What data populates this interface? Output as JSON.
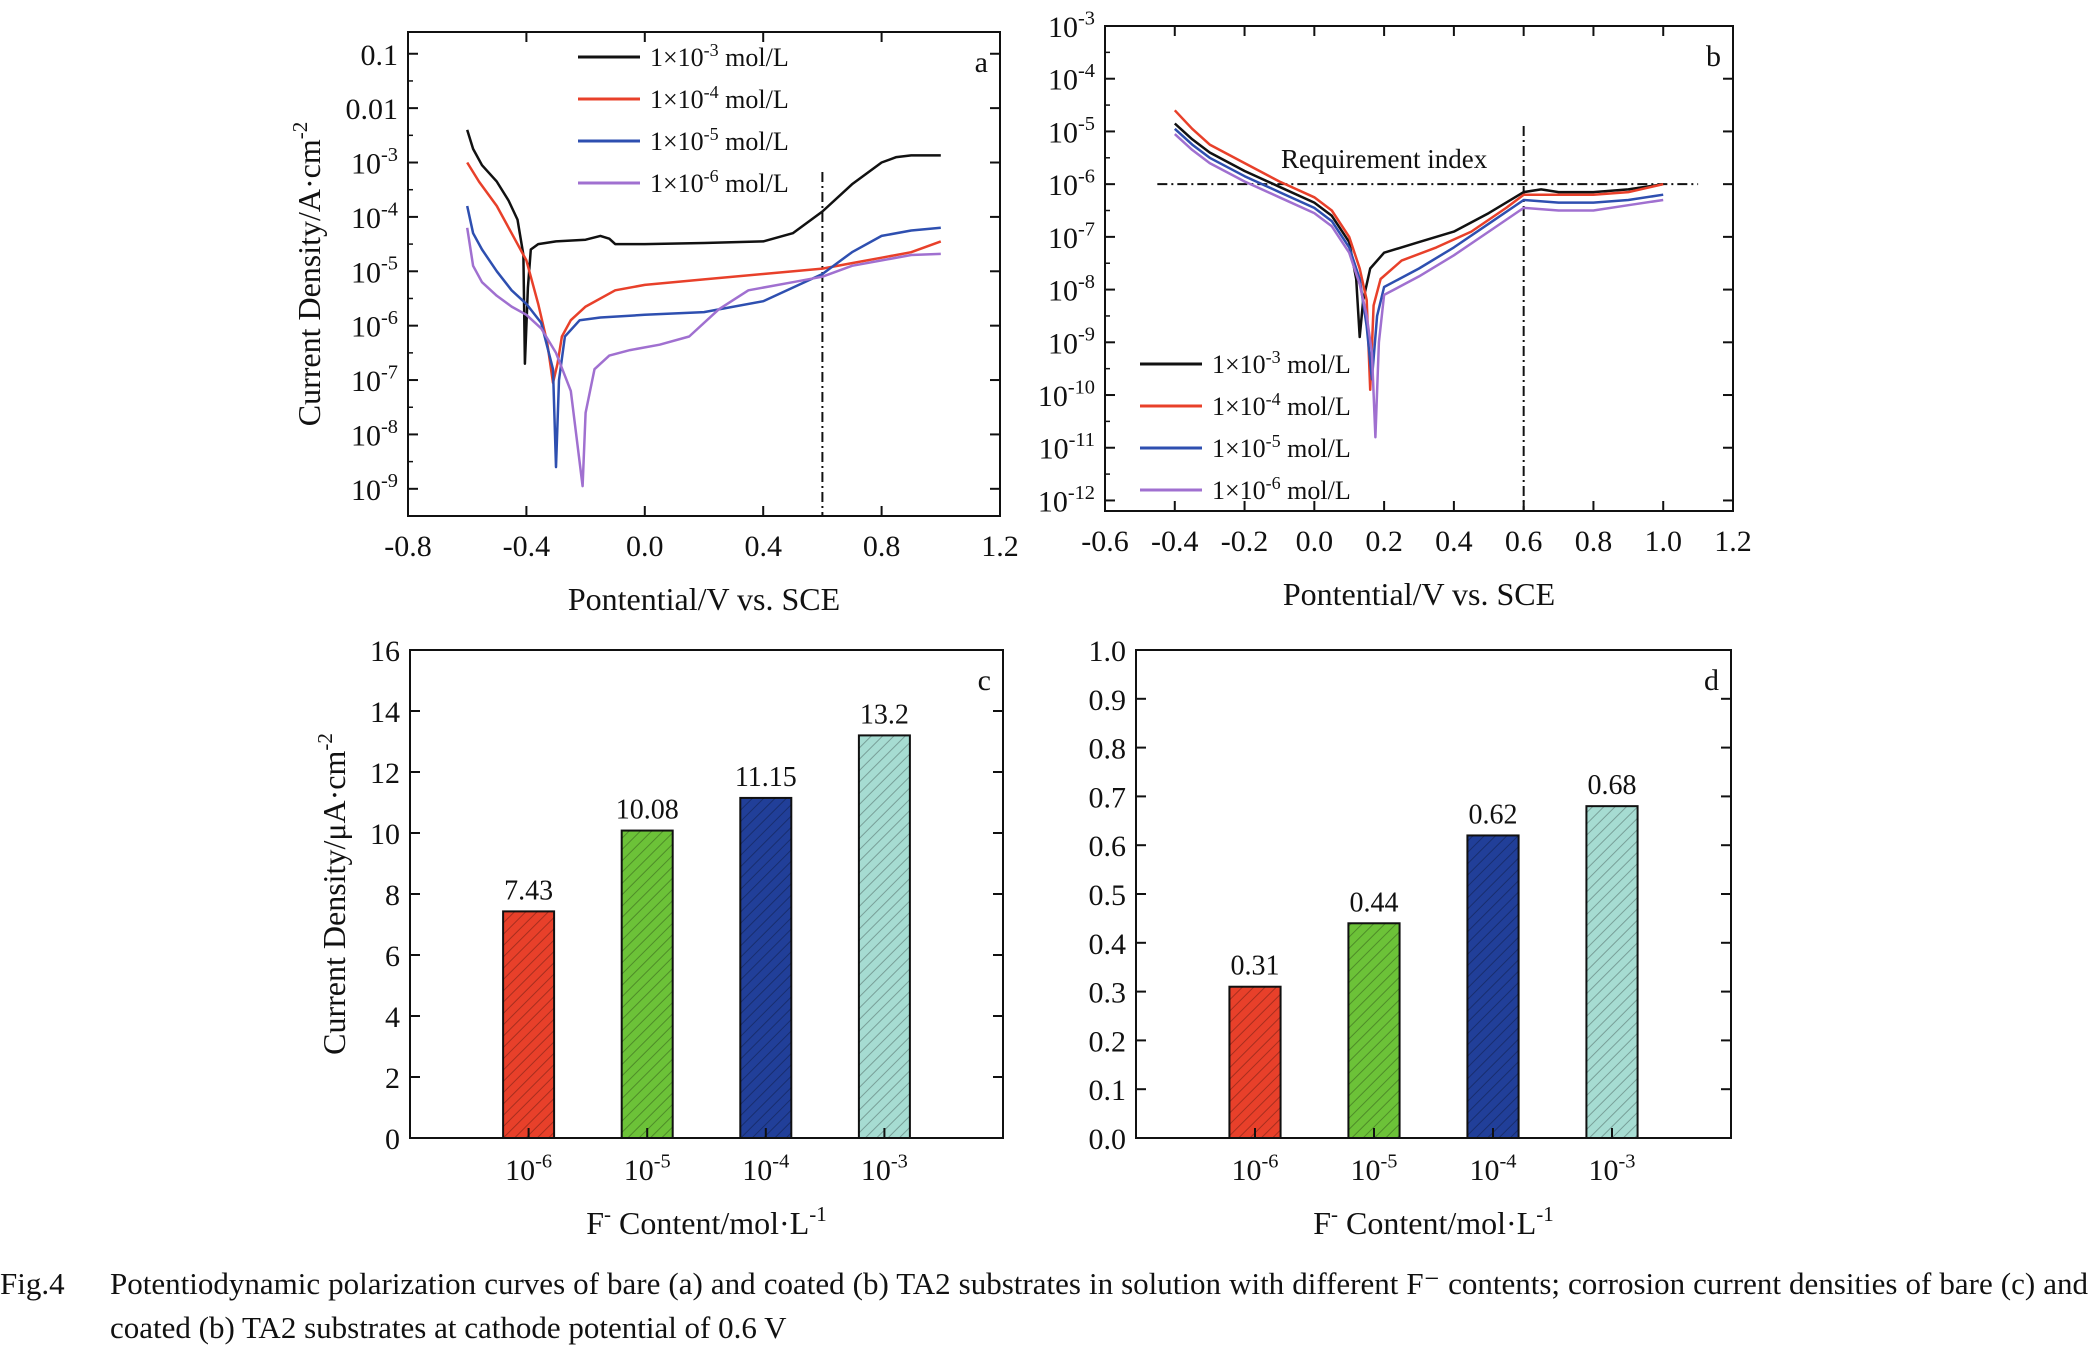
{
  "charts": [
    {
      "id": "a",
      "panel_label": "a",
      "type": "line",
      "yscale": "log",
      "xlabel": "Pontential/V vs. SCE",
      "ylabel": "Current Density/A·cm",
      "ylabel_sup": "-2",
      "xlim": [
        -0.8,
        1.2
      ],
      "xticks": [
        "-0.8",
        "-0.4",
        "0.0",
        "0.4",
        "0.8",
        "1.2"
      ],
      "ylim_exp": [
        -9.5,
        -0.6
      ],
      "yticks": [
        {
          "exp": -1,
          "base": "0.1",
          "sup": ""
        },
        {
          "exp": -2,
          "base": "0.01",
          "sup": ""
        },
        {
          "exp": -3,
          "base": "10",
          "sup": "-3"
        },
        {
          "exp": -4,
          "base": "10",
          "sup": "-4"
        },
        {
          "exp": -5,
          "base": "10",
          "sup": "-5"
        },
        {
          "exp": -6,
          "base": "10",
          "sup": "-6"
        },
        {
          "exp": -7,
          "base": "10",
          "sup": "-7"
        },
        {
          "exp": -8,
          "base": "10",
          "sup": "-8"
        },
        {
          "exp": -9,
          "base": "10",
          "sup": "-9"
        }
      ],
      "vline": 0.6,
      "legend_position": "top-center",
      "series": [
        {
          "name": "1×10",
          "name_sup": "-3",
          "name_unit": " mol/L",
          "color": "#111111",
          "points": [
            [
              -0.6,
              -2.4
            ],
            [
              -0.58,
              -2.75
            ],
            [
              -0.55,
              -3.05
            ],
            [
              -0.5,
              -3.35
            ],
            [
              -0.46,
              -3.7
            ],
            [
              -0.43,
              -4.05
            ],
            [
              -0.41,
              -4.7
            ],
            [
              -0.405,
              -6.7
            ],
            [
              -0.395,
              -5.3
            ],
            [
              -0.385,
              -4.6
            ],
            [
              -0.36,
              -4.5
            ],
            [
              -0.3,
              -4.45
            ],
            [
              -0.2,
              -4.42
            ],
            [
              -0.15,
              -4.35
            ],
            [
              -0.12,
              -4.4
            ],
            [
              -0.1,
              -4.5
            ],
            [
              0.0,
              -4.5
            ],
            [
              0.2,
              -4.48
            ],
            [
              0.4,
              -4.45
            ],
            [
              0.5,
              -4.3
            ],
            [
              0.6,
              -3.9
            ],
            [
              0.7,
              -3.4
            ],
            [
              0.8,
              -3.0
            ],
            [
              0.85,
              -2.9
            ],
            [
              0.9,
              -2.87
            ],
            [
              1.0,
              -2.87
            ]
          ]
        },
        {
          "name": "1×10",
          "name_sup": "-4",
          "name_unit": " mol/L",
          "color": "#e8402a",
          "points": [
            [
              -0.6,
              -3.0
            ],
            [
              -0.56,
              -3.35
            ],
            [
              -0.5,
              -3.8
            ],
            [
              -0.45,
              -4.3
            ],
            [
              -0.4,
              -4.8
            ],
            [
              -0.36,
              -5.6
            ],
            [
              -0.33,
              -6.3
            ],
            [
              -0.31,
              -7.05
            ],
            [
              -0.295,
              -6.7
            ],
            [
              -0.28,
              -6.2
            ],
            [
              -0.25,
              -5.9
            ],
            [
              -0.2,
              -5.65
            ],
            [
              -0.1,
              -5.35
            ],
            [
              0.0,
              -5.25
            ],
            [
              0.2,
              -5.15
            ],
            [
              0.4,
              -5.05
            ],
            [
              0.6,
              -4.95
            ],
            [
              0.7,
              -4.85
            ],
            [
              0.8,
              -4.75
            ],
            [
              0.9,
              -4.65
            ],
            [
              1.0,
              -4.45
            ]
          ]
        },
        {
          "name": "1×10",
          "name_sup": "-5",
          "name_unit": " mol/L",
          "color": "#2e4fb0",
          "points": [
            [
              -0.6,
              -3.8
            ],
            [
              -0.58,
              -4.3
            ],
            [
              -0.55,
              -4.6
            ],
            [
              -0.5,
              -5.0
            ],
            [
              -0.45,
              -5.35
            ],
            [
              -0.4,
              -5.6
            ],
            [
              -0.35,
              -5.95
            ],
            [
              -0.31,
              -6.8
            ],
            [
              -0.3,
              -8.6
            ],
            [
              -0.29,
              -7.0
            ],
            [
              -0.27,
              -6.2
            ],
            [
              -0.22,
              -5.9
            ],
            [
              -0.15,
              -5.85
            ],
            [
              0.0,
              -5.8
            ],
            [
              0.2,
              -5.75
            ],
            [
              0.4,
              -5.55
            ],
            [
              0.6,
              -5.05
            ],
            [
              0.7,
              -4.65
            ],
            [
              0.8,
              -4.35
            ],
            [
              0.9,
              -4.25
            ],
            [
              1.0,
              -4.2
            ]
          ]
        },
        {
          "name": "1×10",
          "name_sup": "-6",
          "name_unit": " mol/L",
          "color": "#a070d0",
          "points": [
            [
              -0.6,
              -4.2
            ],
            [
              -0.58,
              -4.9
            ],
            [
              -0.55,
              -5.2
            ],
            [
              -0.5,
              -5.45
            ],
            [
              -0.45,
              -5.65
            ],
            [
              -0.4,
              -5.8
            ],
            [
              -0.35,
              -6.05
            ],
            [
              -0.3,
              -6.5
            ],
            [
              -0.25,
              -7.2
            ],
            [
              -0.21,
              -8.95
            ],
            [
              -0.2,
              -7.6
            ],
            [
              -0.17,
              -6.8
            ],
            [
              -0.12,
              -6.55
            ],
            [
              -0.05,
              -6.45
            ],
            [
              0.05,
              -6.35
            ],
            [
              0.15,
              -6.2
            ],
            [
              0.25,
              -5.7
            ],
            [
              0.35,
              -5.35
            ],
            [
              0.5,
              -5.2
            ],
            [
              0.6,
              -5.1
            ],
            [
              0.7,
              -4.9
            ],
            [
              0.8,
              -4.8
            ],
            [
              0.9,
              -4.7
            ],
            [
              1.0,
              -4.68
            ]
          ]
        }
      ]
    },
    {
      "id": "b",
      "panel_label": "b",
      "type": "line",
      "yscale": "log",
      "xlabel": "Pontential/V vs. SCE",
      "ylabel": "",
      "xlim": [
        -0.6,
        1.2
      ],
      "xticks": [
        "-0.6",
        "-0.4",
        "-0.2",
        "0.0",
        "0.2",
        "0.4",
        "0.6",
        "0.8",
        "1.0",
        "1.2"
      ],
      "ylim_exp": [
        -12.2,
        -3
      ],
      "yticks": [
        {
          "exp": -3,
          "base": "10",
          "sup": "-3"
        },
        {
          "exp": -4,
          "base": "10",
          "sup": "-4"
        },
        {
          "exp": -5,
          "base": "10",
          "sup": "-5"
        },
        {
          "exp": -6,
          "base": "10",
          "sup": "-6"
        },
        {
          "exp": -7,
          "base": "10",
          "sup": "-7"
        },
        {
          "exp": -8,
          "base": "10",
          "sup": "-8"
        },
        {
          "exp": -9,
          "base": "10",
          "sup": "-9"
        },
        {
          "exp": -10,
          "base": "10",
          "sup": "-10"
        },
        {
          "exp": -11,
          "base": "10",
          "sup": "-11"
        },
        {
          "exp": -12,
          "base": "10",
          "sup": "-12"
        }
      ],
      "vline": 0.6,
      "hline_exp": -6,
      "annotation": "Requirement index",
      "legend_position": "bottom-left",
      "series": [
        {
          "name": "1×10",
          "name_sup": "-3",
          "name_unit": " mol/L",
          "color": "#111111",
          "points": [
            [
              -0.4,
              -4.85
            ],
            [
              -0.35,
              -5.15
            ],
            [
              -0.3,
              -5.4
            ],
            [
              -0.2,
              -5.75
            ],
            [
              -0.1,
              -6.05
            ],
            [
              0.0,
              -6.35
            ],
            [
              0.05,
              -6.6
            ],
            [
              0.1,
              -7.1
            ],
            [
              0.12,
              -7.8
            ],
            [
              0.13,
              -8.9
            ],
            [
              0.14,
              -8.2
            ],
            [
              0.16,
              -7.6
            ],
            [
              0.2,
              -7.3
            ],
            [
              0.3,
              -7.1
            ],
            [
              0.4,
              -6.9
            ],
            [
              0.5,
              -6.55
            ],
            [
              0.6,
              -6.15
            ],
            [
              0.65,
              -6.1
            ],
            [
              0.7,
              -6.15
            ],
            [
              0.8,
              -6.15
            ],
            [
              0.9,
              -6.1
            ],
            [
              1.0,
              -6.0
            ]
          ]
        },
        {
          "name": "1×10",
          "name_sup": "-4",
          "name_unit": " mol/L",
          "color": "#e8402a",
          "points": [
            [
              -0.4,
              -4.6
            ],
            [
              -0.35,
              -4.95
            ],
            [
              -0.3,
              -5.25
            ],
            [
              -0.2,
              -5.6
            ],
            [
              -0.1,
              -5.95
            ],
            [
              0.0,
              -6.25
            ],
            [
              0.05,
              -6.5
            ],
            [
              0.1,
              -7.0
            ],
            [
              0.13,
              -7.6
            ],
            [
              0.15,
              -8.2
            ],
            [
              0.16,
              -9.9
            ],
            [
              0.17,
              -8.3
            ],
            [
              0.19,
              -7.8
            ],
            [
              0.25,
              -7.45
            ],
            [
              0.35,
              -7.2
            ],
            [
              0.45,
              -6.9
            ],
            [
              0.55,
              -6.45
            ],
            [
              0.6,
              -6.2
            ],
            [
              0.7,
              -6.2
            ],
            [
              0.8,
              -6.2
            ],
            [
              0.9,
              -6.15
            ],
            [
              1.0,
              -6.0
            ]
          ]
        },
        {
          "name": "1×10",
          "name_sup": "-5",
          "name_unit": " mol/L",
          "color": "#2e4fb0",
          "points": [
            [
              -0.4,
              -4.95
            ],
            [
              -0.35,
              -5.25
            ],
            [
              -0.3,
              -5.5
            ],
            [
              -0.2,
              -5.85
            ],
            [
              -0.1,
              -6.15
            ],
            [
              0.0,
              -6.45
            ],
            [
              0.05,
              -6.7
            ],
            [
              0.1,
              -7.2
            ],
            [
              0.13,
              -7.8
            ],
            [
              0.15,
              -8.7
            ],
            [
              0.165,
              -9.7
            ],
            [
              0.18,
              -8.5
            ],
            [
              0.2,
              -7.95
            ],
            [
              0.3,
              -7.6
            ],
            [
              0.4,
              -7.2
            ],
            [
              0.5,
              -6.75
            ],
            [
              0.6,
              -6.3
            ],
            [
              0.7,
              -6.35
            ],
            [
              0.8,
              -6.35
            ],
            [
              0.9,
              -6.3
            ],
            [
              1.0,
              -6.2
            ]
          ]
        },
        {
          "name": "1×10",
          "name_sup": "-6",
          "name_unit": " mol/L",
          "color": "#a070d0",
          "points": [
            [
              -0.4,
              -5.05
            ],
            [
              -0.35,
              -5.35
            ],
            [
              -0.3,
              -5.6
            ],
            [
              -0.2,
              -5.95
            ],
            [
              -0.1,
              -6.25
            ],
            [
              0.0,
              -6.55
            ],
            [
              0.05,
              -6.8
            ],
            [
              0.1,
              -7.3
            ],
            [
              0.13,
              -7.9
            ],
            [
              0.15,
              -8.5
            ],
            [
              0.165,
              -9.2
            ],
            [
              0.175,
              -10.8
            ],
            [
              0.185,
              -9.0
            ],
            [
              0.2,
              -8.1
            ],
            [
              0.3,
              -7.75
            ],
            [
              0.4,
              -7.35
            ],
            [
              0.5,
              -6.9
            ],
            [
              0.6,
              -6.45
            ],
            [
              0.7,
              -6.5
            ],
            [
              0.8,
              -6.5
            ],
            [
              0.9,
              -6.4
            ],
            [
              1.0,
              -6.3
            ]
          ]
        }
      ]
    },
    {
      "id": "c",
      "panel_label": "c",
      "type": "bar",
      "xlabel": "F",
      "xlabel_sup": "-",
      "xlabel_rest": " Content/mol·L",
      "xlabel_sup2": "-1",
      "ylabel": "Current Density/μA·cm",
      "ylabel_sup": "-2",
      "ylim": [
        0,
        16
      ],
      "yticks": [
        0,
        2,
        4,
        6,
        8,
        10,
        12,
        14,
        16
      ],
      "categories": [
        {
          "base": "10",
          "sup": "-6"
        },
        {
          "base": "10",
          "sup": "-5"
        },
        {
          "base": "10",
          "sup": "-4"
        },
        {
          "base": "10",
          "sup": "-3"
        }
      ],
      "values": [
        7.43,
        10.08,
        11.15,
        13.2
      ],
      "value_labels": [
        "7.43",
        "10.08",
        "11.15",
        "13.2"
      ],
      "colors": [
        "#e8402a",
        "#6cc238",
        "#213f99",
        "#a6dcd2"
      ]
    },
    {
      "id": "d",
      "panel_label": "d",
      "type": "bar",
      "xlabel": "F",
      "xlabel_sup": "-",
      "xlabel_rest": " Content/mol·L",
      "xlabel_sup2": "-1",
      "ylabel": "",
      "ylim": [
        0,
        1.0
      ],
      "yticks": [
        0.0,
        0.1,
        0.2,
        0.3,
        0.4,
        0.5,
        0.6,
        0.7,
        0.8,
        0.9,
        1.0
      ],
      "ytick_labels": [
        "0.0",
        "0.1",
        "0.2",
        "0.3",
        "0.4",
        "0.5",
        "0.6",
        "0.7",
        "0.8",
        "0.9",
        "1.0"
      ],
      "categories": [
        {
          "base": "10",
          "sup": "-6"
        },
        {
          "base": "10",
          "sup": "-5"
        },
        {
          "base": "10",
          "sup": "-4"
        },
        {
          "base": "10",
          "sup": "-3"
        }
      ],
      "values": [
        0.31,
        0.44,
        0.62,
        0.68
      ],
      "value_labels": [
        "0.31",
        "0.44",
        "0.62",
        "0.68"
      ],
      "colors": [
        "#e8402a",
        "#6cc238",
        "#213f99",
        "#a6dcd2"
      ]
    }
  ],
  "caption": {
    "label": "Fig.4",
    "text": "Potentiodynamic polarization curves of bare (a) and coated (b) TA2 substrates in solution with different F⁻ contents; corrosion current densities of bare (c) and coated (b) TA2 substrates at cathode potential of 0.6 V"
  }
}
